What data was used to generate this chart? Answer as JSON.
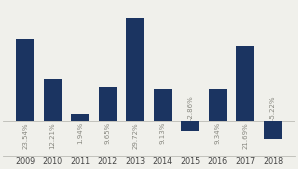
{
  "years": [
    "2009",
    "2010",
    "2011",
    "2012",
    "2013",
    "2014",
    "2015",
    "2016",
    "2017",
    "2018"
  ],
  "values": [
    23.54,
    12.21,
    1.94,
    9.65,
    29.72,
    9.13,
    -2.86,
    9.34,
    21.69,
    -5.22
  ],
  "labels": [
    "23.54%",
    "12.21%",
    "1.94%",
    "9.65%",
    "29.72%",
    "9.13%",
    "-2.86%",
    "9.34%",
    "21.69%",
    "-5.22%"
  ],
  "bar_color": "#1b3461",
  "background_color": "#f0f0eb",
  "label_fontsize": 5.0,
  "tick_fontsize": 5.8,
  "label_color": "#888880",
  "ylim_min": -10,
  "ylim_max": 34
}
